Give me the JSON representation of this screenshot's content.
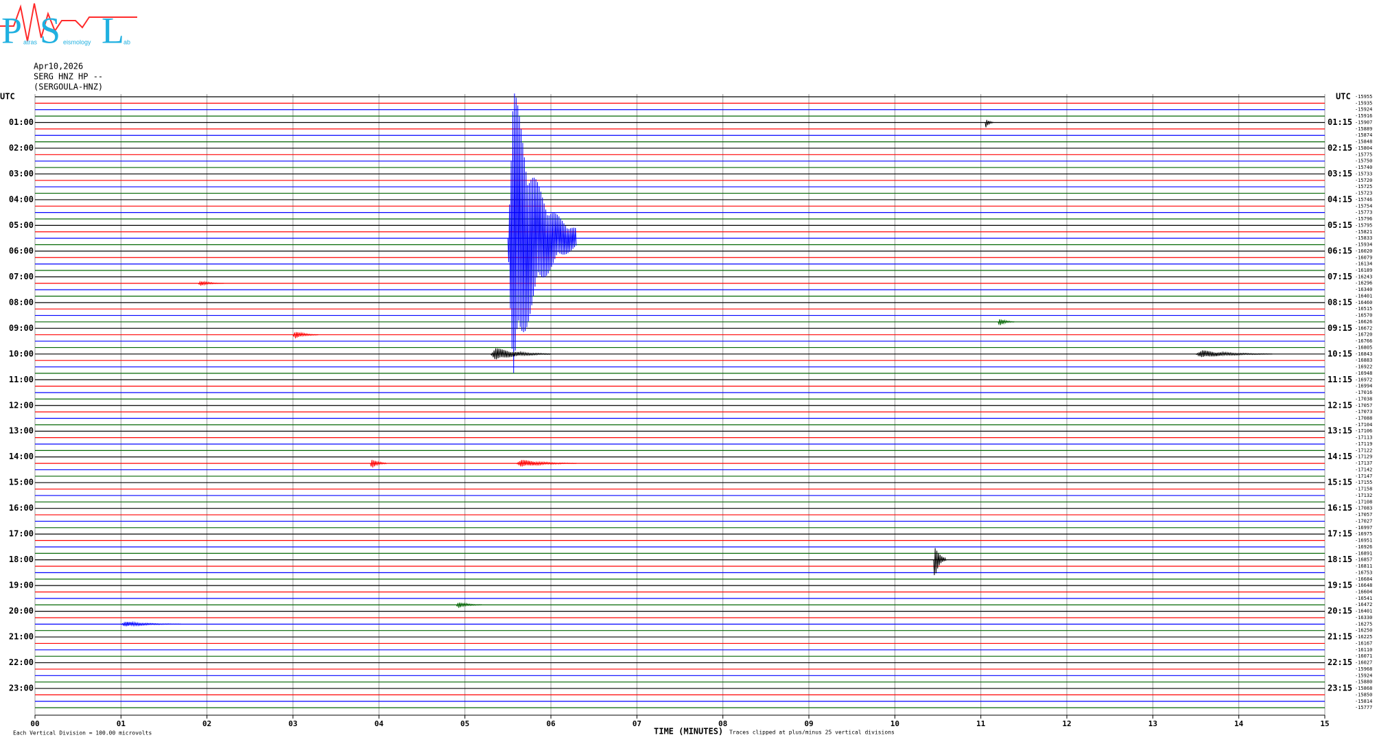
{
  "chart_data": {
    "type": "helicorder",
    "logo": {
      "letters": [
        "P",
        "S",
        "L"
      ],
      "small": [
        "atras",
        "eismology",
        "ab"
      ]
    },
    "header": [
      "Apr10,2026",
      "SERG HNZ HP --",
      "(SERGOULA-HNZ)"
    ],
    "left_utc": "UTC",
    "right_utc": "UTC",
    "hour_labels_left": [
      "01:00",
      "02:00",
      "03:00",
      "04:00",
      "05:00",
      "06:00",
      "07:00",
      "08:00",
      "09:00",
      "10:00",
      "11:00",
      "12:00",
      "13:00",
      "14:00",
      "15:00",
      "16:00",
      "17:00",
      "18:00",
      "19:00",
      "20:00",
      "21:00",
      "22:00",
      "23:00"
    ],
    "hour_labels_right": [
      "01:15",
      "02:15",
      "03:15",
      "04:15",
      "05:15",
      "06:15",
      "07:15",
      "08:15",
      "09:15",
      "10:15",
      "11:15",
      "12:15",
      "13:15",
      "14:15",
      "15:15",
      "16:15",
      "17:15",
      "18:15",
      "19:15",
      "20:15",
      "21:15",
      "22:15",
      "23:15"
    ],
    "trace_colors": [
      "#000000",
      "#ff0000",
      "#0000ff",
      "#006400"
    ],
    "offsets": [
      -15955,
      -15935,
      -15924,
      -15916,
      -15907,
      -15889,
      -15874,
      -15848,
      -15804,
      -15775,
      -15750,
      -15740,
      -15733,
      -15720,
      -15725,
      -15723,
      -15746,
      -15754,
      -15773,
      -15796,
      -15795,
      -15821,
      -15833,
      -15934,
      -16020,
      -16079,
      -16134,
      -16189,
      -16243,
      -16296,
      -16340,
      -16401,
      -16460,
      -16515,
      -16570,
      -16626,
      -16672,
      -16720,
      -16766,
      -16805,
      -16843,
      -16883,
      -16922,
      -16948,
      -16972,
      -16994,
      -17016,
      -17038,
      -17057,
      -17073,
      -17088,
      -17104,
      -17106,
      -17113,
      -17119,
      -17122,
      -17129,
      -17137,
      -17142,
      -17147,
      -17155,
      -17158,
      -17132,
      -17108,
      -17083,
      -17057,
      -17027,
      -16997,
      -16975,
      -16951,
      -16926,
      -16891,
      -16857,
      -16811,
      -16753,
      -16684,
      -16648,
      -16604,
      -16541,
      -16472,
      -16401,
      -16330,
      -16275,
      -16250,
      -16225,
      -16167,
      -16110,
      -16071,
      -16027,
      -15968,
      -15924,
      -15880,
      -15868,
      -15850,
      -15814,
      -15777
    ],
    "xlim": [
      0,
      15
    ],
    "xticks": [
      {
        "value": 0,
        "label": "00"
      },
      {
        "value": 1,
        "label": "01"
      },
      {
        "value": 2,
        "label": "02"
      },
      {
        "value": 3,
        "label": "03"
      },
      {
        "value": 4,
        "label": "04"
      },
      {
        "value": 5,
        "label": "05"
      },
      {
        "value": 6,
        "label": "06"
      },
      {
        "value": 7,
        "label": "07"
      },
      {
        "value": 8,
        "label": "08"
      },
      {
        "value": 9,
        "label": "09"
      },
      10,
      11,
      12,
      13,
      14,
      15
    ],
    "x_label": "TIME (MINUTES)",
    "scale_note": "Each Vertical Division =  100.00 microvolts",
    "clip_note": "Traces clipped at plus/minus 25 vertical divisions",
    "events": [
      {
        "row": 22,
        "start": 5.5,
        "end": 6.3,
        "amplitude": 25
      },
      {
        "row": 72,
        "start": 10.45,
        "end": 10.6,
        "amplitude": 3
      },
      {
        "row": 40,
        "start": 5.3,
        "end": 6.0,
        "amplitude": 1
      },
      {
        "row": 37,
        "start": 3.0,
        "end": 3.3,
        "amplitude": 0.6
      },
      {
        "row": 57,
        "start": 5.6,
        "end": 6.3,
        "amplitude": 0.6
      },
      {
        "row": 57,
        "start": 3.9,
        "end": 4.1,
        "amplitude": 0.8
      },
      {
        "row": 79,
        "start": 4.9,
        "end": 5.2,
        "amplitude": 0.5
      },
      {
        "row": 82,
        "start": 1.0,
        "end": 1.7,
        "amplitude": 0.4
      },
      {
        "row": 35,
        "start": 11.2,
        "end": 11.4,
        "amplitude": 0.6
      },
      {
        "row": 4,
        "start": 11.05,
        "end": 11.15,
        "amplitude": 0.8
      },
      {
        "row": 40,
        "start": 13.5,
        "end": 14.4,
        "amplitude": 0.6
      },
      {
        "row": 29,
        "start": 1.9,
        "end": 2.2,
        "amplitude": 0.4
      }
    ]
  }
}
